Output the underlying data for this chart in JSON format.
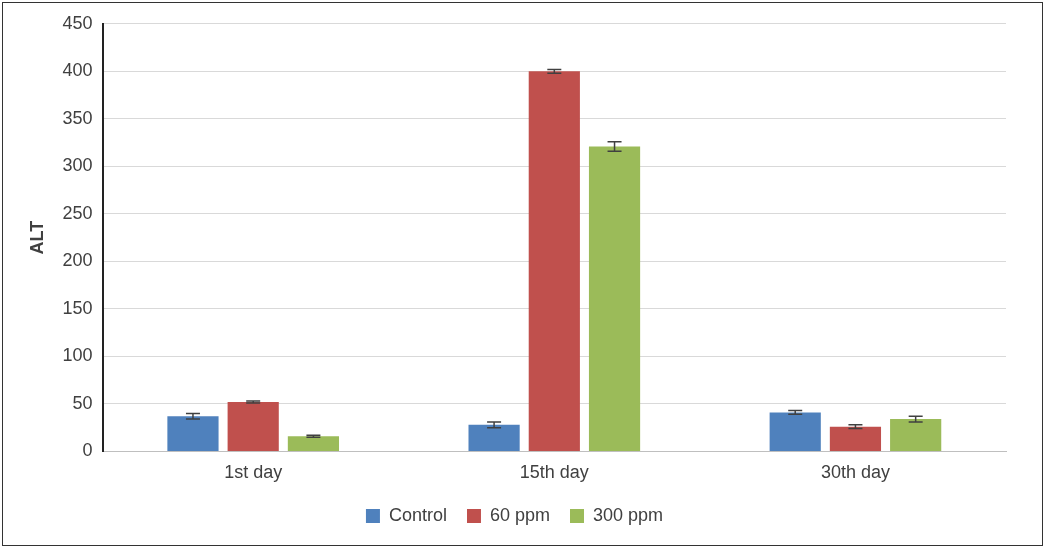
{
  "chart_data": {
    "type": "bar",
    "ylabel": "ALT",
    "categories": [
      "1st day",
      "15th day",
      "30th day"
    ],
    "series": [
      {
        "name": "Control",
        "color": "#4f81bd",
        "values": [
          37,
          28,
          41
        ],
        "errors": [
          3,
          3,
          2
        ]
      },
      {
        "name": "60 ppm",
        "color": "#c0504d",
        "values": [
          52,
          400,
          26
        ],
        "errors": [
          1,
          2,
          2
        ]
      },
      {
        "name": "300 ppm",
        "color": "#9bbb59",
        "values": [
          16,
          321,
          34
        ],
        "errors": [
          1,
          5,
          3
        ]
      }
    ],
    "ylim": [
      0,
      450
    ],
    "yticks": [
      0,
      50,
      100,
      150,
      200,
      250,
      300,
      350,
      400,
      450
    ],
    "grid": "y",
    "legend": "bottom"
  }
}
